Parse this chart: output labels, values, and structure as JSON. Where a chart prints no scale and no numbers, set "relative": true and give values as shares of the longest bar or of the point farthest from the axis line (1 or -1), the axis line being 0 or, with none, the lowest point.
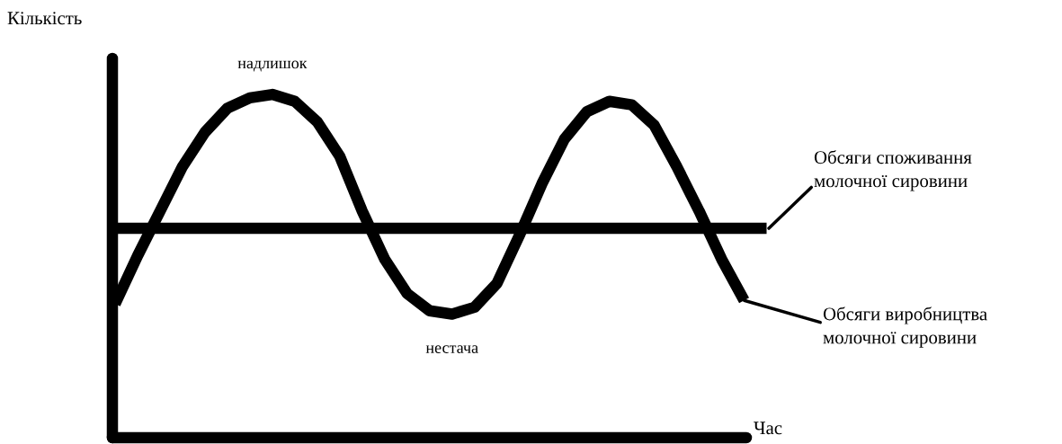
{
  "chart_data": {
    "type": "line",
    "relative": true,
    "xlabel": "Час",
    "ylabel": "Кількість",
    "marker": "none",
    "line_style": "solid",
    "categories": [
      null,
      null,
      null,
      null,
      null,
      null,
      null,
      null,
      null,
      null,
      null,
      null,
      null,
      null,
      null,
      null,
      null,
      null,
      null,
      null,
      null,
      null,
      null,
      null,
      null,
      null,
      null,
      null,
      null,
      null
    ],
    "series": [
      {
        "name": "Обсяги споживання\nмолочної сировини",
        "color": "#000000",
        "values": [
          0.61,
          0.61,
          0.61,
          0.61,
          0.61,
          0.61,
          0.61,
          0.61,
          0.61,
          0.61,
          0.61,
          0.61,
          0.61,
          0.61,
          0.61,
          0.61,
          0.61,
          0.61,
          0.61,
          0.61,
          0.61,
          0.61,
          0.61,
          0.61,
          0.61,
          0.61,
          0.61,
          0.61,
          0.61,
          0.61
        ]
      },
      {
        "name": "Обсяги виробництва\nмолочної сировини",
        "color": "#000000",
        "values": [
          0.39,
          0.53,
          0.66,
          0.79,
          0.89,
          0.96,
          0.99,
          1,
          0.98,
          0.92,
          0.82,
          0.66,
          0.52,
          0.42,
          0.37,
          0.36,
          0.38,
          0.45,
          0.59,
          0.74,
          0.87,
          0.95,
          0.98,
          0.97,
          0.91,
          0.79,
          0.66,
          0.52,
          0.4,
          null
        ]
      }
    ],
    "annotations": [
      "надлишок",
      "нестача"
    ]
  }
}
